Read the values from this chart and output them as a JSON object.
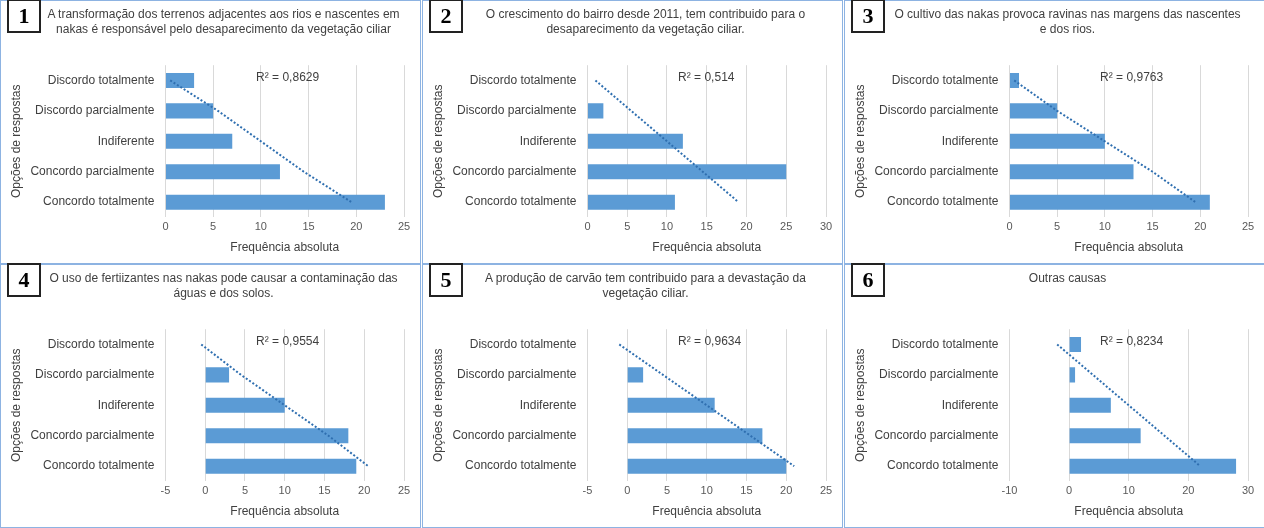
{
  "chart_data": [
    {
      "type": "bar",
      "orientation": "horizontal",
      "title": "A transformação dos terrenos adjacentes aos rios e nascentes em nakas é responsável pelo desaparecimento da vegetação ciliar",
      "xlabel": "Frequência absoluta",
      "ylabel": "Opções de respostas",
      "categories": [
        "Discordo totalmente",
        "Discordo parcialmente",
        "Indiferente",
        "Concordo parcialmente",
        "Concordo totalmente"
      ],
      "series": [
        {
          "color": "#5b9bd5",
          "values": [
            3,
            5,
            7,
            12,
            23
          ]
        },
        {
          "type": "line",
          "color": "#2f6fb0",
          "line_style": "dotted",
          "marker": "none",
          "values": [
            0.5,
            5.5,
            10,
            14.5,
            19.5
          ]
        }
      ],
      "xlim": [
        0,
        25
      ],
      "xticks": [
        0,
        5,
        10,
        15,
        20,
        25
      ],
      "grid": "x",
      "legend": false,
      "annotations": [
        "1",
        "R² = 0,8629"
      ]
    },
    {
      "type": "bar",
      "orientation": "horizontal",
      "title": "O crescimento do bairro desde 2011, tem contribuido para o desaparecimento da vegetação ciliar.",
      "xlabel": "Frequência absoluta",
      "ylabel": "Opções de respostas",
      "categories": [
        "Discordo totalmente",
        "Discordo parcialmente",
        "Indiferente",
        "Concordo parcialmente",
        "Concordo totalmente"
      ],
      "series": [
        {
          "color": "#5b9bd5",
          "values": [
            0,
            2,
            12,
            25,
            11
          ]
        },
        {
          "type": "line",
          "color": "#2f6fb0",
          "line_style": "dotted",
          "marker": "none",
          "values": [
            1,
            5.5,
            10,
            14.5,
            19
          ]
        }
      ],
      "xlim": [
        0,
        30
      ],
      "xticks": [
        0,
        5,
        10,
        15,
        20,
        25,
        30
      ],
      "grid": "x",
      "legend": false,
      "annotations": [
        "2",
        "R² = 0,514"
      ]
    },
    {
      "type": "bar",
      "orientation": "horizontal",
      "title": "O cultivo das nakas provoca ravinas nas margens das nascentes e dos rios.",
      "xlabel": "Frequência absoluta",
      "ylabel": "Opções de respostas",
      "categories": [
        "Discordo totalmente",
        "Discordo parcialmente",
        "Indiferente",
        "Concordo parcialmente",
        "Concordo totalmente"
      ],
      "series": [
        {
          "color": "#5b9bd5",
          "values": [
            1,
            5,
            10,
            13,
            21
          ]
        },
        {
          "type": "line",
          "color": "#2f6fb0",
          "line_style": "dotted",
          "marker": "none",
          "values": [
            0.5,
            5,
            10,
            15,
            19.5
          ]
        }
      ],
      "xlim": [
        0,
        25
      ],
      "xticks": [
        0,
        5,
        10,
        15,
        20,
        25
      ],
      "grid": "x",
      "legend": false,
      "annotations": [
        "3",
        "R² = 0,9763"
      ]
    },
    {
      "type": "bar",
      "orientation": "horizontal",
      "title": "O uso de fertiizantes nas nakas pode causar a contaminação das águas e dos solos.",
      "xlabel": "Frequência absoluta",
      "ylabel": "Opções de respostas",
      "categories": [
        "Discordo totalmente",
        "Discordo parcialmente",
        "Indiferente",
        "Concordo parcialmente",
        "Concordo totalmente"
      ],
      "series": [
        {
          "color": "#5b9bd5",
          "values": [
            0,
            3,
            10,
            18,
            19
          ]
        },
        {
          "type": "line",
          "color": "#2f6fb0",
          "line_style": "dotted",
          "marker": "none",
          "values": [
            -0.5,
            4.5,
            10,
            15.5,
            20.5
          ]
        }
      ],
      "xlim": [
        -5,
        25
      ],
      "xticks": [
        -5,
        0,
        5,
        10,
        15,
        20,
        25
      ],
      "grid": "x",
      "legend": false,
      "annotations": [
        "4",
        "R² = 0,9554"
      ]
    },
    {
      "type": "bar",
      "orientation": "horizontal",
      "title": "A produção de carvão tem contribuido para a devastação da vegetação ciliar.",
      "xlabel": "Frequência absoluta",
      "ylabel": "Opções de respostas",
      "categories": [
        "Discordo totalmente",
        "Discordo parcialmente",
        "Indiferente",
        "Concordo parcialmente",
        "Concordo totalmente"
      ],
      "series": [
        {
          "color": "#5b9bd5",
          "values": [
            0,
            2,
            11,
            17,
            20
          ]
        },
        {
          "type": "line",
          "color": "#2f6fb0",
          "line_style": "dotted",
          "marker": "none",
          "values": [
            -1,
            4.5,
            10,
            15.5,
            21
          ]
        }
      ],
      "xlim": [
        -5,
        25
      ],
      "xticks": [
        -5,
        0,
        5,
        10,
        15,
        20,
        25
      ],
      "grid": "x",
      "legend": false,
      "annotations": [
        "5",
        "R² = 0,9634"
      ]
    },
    {
      "type": "bar",
      "orientation": "horizontal",
      "title": "Outras causas",
      "xlabel": "Frequência absoluta",
      "ylabel": "Opções de respostas",
      "categories": [
        "Discordo totalmente",
        "Discordo parcialmente",
        "Indiferente",
        "Concordo parcialmente",
        "Concordo totalmente"
      ],
      "series": [
        {
          "color": "#5b9bd5",
          "values": [
            2,
            1,
            7,
            12,
            28
          ]
        },
        {
          "type": "line",
          "color": "#2f6fb0",
          "line_style": "dotted",
          "marker": "none",
          "values": [
            -2,
            4,
            10,
            16,
            22
          ]
        }
      ],
      "xlim": [
        -10,
        30
      ],
      "xticks": [
        -10,
        0,
        10,
        20,
        30
      ],
      "grid": "x",
      "legend": false,
      "annotations": [
        "6",
        "R² = 0,8234"
      ]
    }
  ]
}
